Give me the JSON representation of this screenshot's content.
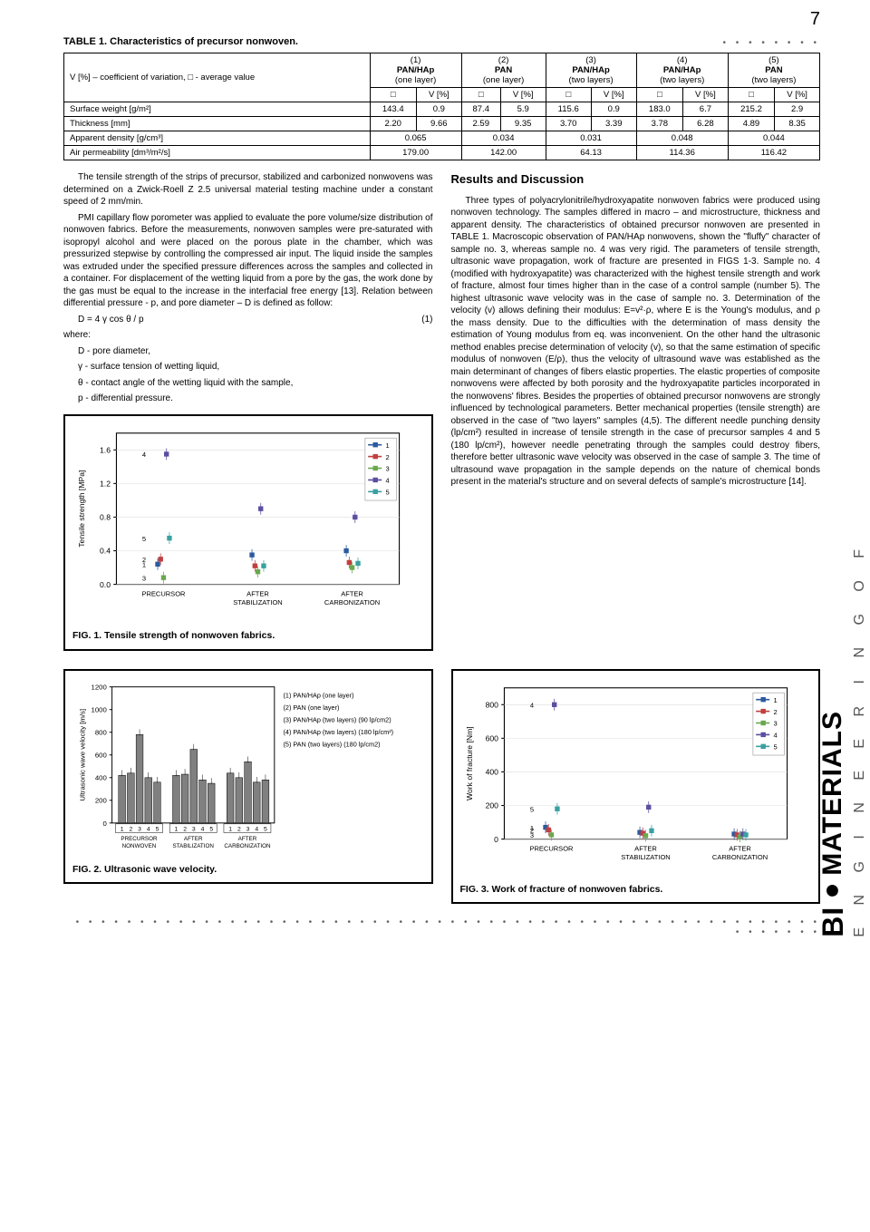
{
  "page_number": "7",
  "table": {
    "title": "TABLE 1. Characteristics of precursor nonwoven.",
    "col_groups": [
      {
        "num": "(1)",
        "mat": "PAN/HAp",
        "layers": "(one layer)"
      },
      {
        "num": "(2)",
        "mat": "PAN",
        "layers": "(one layer)"
      },
      {
        "num": "(3)",
        "mat": "PAN/HAp",
        "layers": "(two layers)"
      },
      {
        "num": "(4)",
        "mat": "PAN/HAp",
        "layers": "(two layers)"
      },
      {
        "num": "(5)",
        "mat": "PAN",
        "layers": "(two layers)"
      }
    ],
    "var_label": "V [%] – coefficient of variation, □ - average value",
    "sub_headers": [
      "□",
      "V [%]"
    ],
    "rows": [
      {
        "label": "Surface weight [g/m²]",
        "vals": [
          "143.4",
          "0.9",
          "87.4",
          "5.9",
          "115.6",
          "0.9",
          "183.0",
          "6.7",
          "215.2",
          "2.9"
        ]
      },
      {
        "label": "Thickness [mm]",
        "vals": [
          "2.20",
          "9.66",
          "2.59",
          "9.35",
          "3.70",
          "3.39",
          "3.78",
          "6.28",
          "4.89",
          "8.35"
        ]
      }
    ],
    "merged_rows": [
      {
        "label": "Apparent density [g/cm³]",
        "vals": [
          "0.065",
          "0.034",
          "0.031",
          "0.048",
          "0.044"
        ]
      },
      {
        "label": "Air permeability [dm³/m²/s]",
        "vals": [
          "179.00",
          "142.00",
          "64.13",
          "114.36",
          "116.42"
        ]
      }
    ]
  },
  "left_col": {
    "p1": "The tensile strength of the strips of precursor, stabilized and carbonized nonwovens was determined on a Zwick-Roell Z 2.5 universal material testing machine under a constant speed of 2 mm/min.",
    "p2": "PMI capillary flow porometer was applied to evaluate the pore volume/size distribution of nonwoven fabrics. Before the measurements, nonwoven samples were pre-saturated with isopropyl alcohol and were placed on the porous plate in the chamber, which was pressurized stepwise by controlling the compressed air input. The liquid inside the samples was extruded under the specified pressure differences across the samples and collected in a container. For displacement of the wetting liquid from a pore by the gas, the work done by the gas must be equal to the increase in the interfacial free energy [13]. Relation between differential pressure - p, and pore diameter – D is defined as follow:",
    "eq": "D = 4 γ cos θ / p",
    "eqnum": "(1)",
    "where": "where:",
    "def1": "D - pore diameter,",
    "def2": "γ - surface tension of wetting liquid,",
    "def3": "θ - contact angle of the wetting liquid with the sample,",
    "def4": "p - differential pressure."
  },
  "right_col": {
    "head": "Results and Discussion",
    "body": "Three types of polyacrylonitrile/hydroxyapatite nonwoven fabrics were produced using nonwoven technology. The samples differed in macro – and microstructure, thickness and apparent density. The characteristics of obtained precursor nonwoven are presented in TABLE 1. Macroscopic observation of PAN/HAp nonwovens, shown the \"fluffy\" character of sample no. 3, whereas sample no. 4 was very rigid. The parameters of tensile strength, ultrasonic wave propagation, work of fracture are presented in FIGS 1-3. Sample no. 4 (modified with hydroxyapatite) was characterized with the highest tensile strength and work of fracture, almost four times higher than in the case of a control sample (number 5). The highest ultrasonic wave velocity was in the case of sample no. 3. Determination of the velocity (v) allows defining their modulus: E=v²·ρ, where E is the Young's modulus, and ρ the mass density. Due to the difficulties with the determination of mass density the estimation of Young modulus from eq. was inconvenient. On the other hand the ultrasonic method enables precise determination of velocity (v), so that the same estimation of specific modulus of nonwoven (E/ρ), thus the velocity of ultrasound wave was established as the main determinant of changes of fibers elastic properties. The elastic properties of composite nonwovens were affected by both porosity and the hydroxyapatite particles incorporated in the nonwovens' fibres. Besides the properties of obtained precursor nonwovens are strongly influenced by technological parameters. Better mechanical properties (tensile strength) are observed in the case of \"two layers\" samples (4,5). The different needle punching density (lp/cm²) resulted in increase of tensile strength in the case of precursor samples 4 and 5 (180 lp/cm²), however needle penetrating through the samples could destroy fibers, therefore better ultrasonic wave velocity was observed in the case of sample 3. The time of ultrasound wave propagation in the sample depends on the nature of chemical bonds present in the material's structure and on several defects of sample's microstructure [14]."
  },
  "fig1": {
    "caption": "FIG. 1. Tensile strength of nonwoven fabrics.",
    "ylabel": "Tensile strength [MPa]",
    "yticks": [
      0.0,
      0.4,
      0.8,
      1.2,
      1.6
    ],
    "categories": [
      "PRECURSOR",
      "AFTER STABILIZATION",
      "AFTER CARBONIZATION"
    ],
    "series": [
      {
        "name": "1",
        "color": "#2c5aa0",
        "marker": "diamond",
        "vals": [
          0.24,
          0.35,
          0.4
        ]
      },
      {
        "name": "2",
        "color": "#c04040",
        "marker": "square",
        "vals": [
          0.3,
          0.22,
          0.26
        ]
      },
      {
        "name": "3",
        "color": "#6aa84f",
        "marker": "triangle",
        "vals": [
          0.08,
          0.15,
          0.2
        ]
      },
      {
        "name": "4",
        "color": "#5a4fa0",
        "marker": "square",
        "vals": [
          1.55,
          0.9,
          0.8
        ]
      },
      {
        "name": "5",
        "color": "#3aa0a0",
        "marker": "square",
        "vals": [
          0.55,
          0.22,
          0.25
        ]
      }
    ]
  },
  "fig2": {
    "caption": "FIG. 2. Ultrasonic wave velocity.",
    "ylabel": "Ultrasonic wave velocity [m/s]",
    "yticks": [
      0,
      200,
      400,
      600,
      800,
      1000,
      1200
    ],
    "categories": [
      "PRECURSOR NONWOVEN",
      "AFTER STABILIZATION",
      "AFTER CARBONIZATION"
    ],
    "legend": [
      "(1)  PAN/HAp (one layer)",
      "(2)  PAN (one layer)",
      "(3)  PAN/HAp (two layers) (90 lp/cm2)",
      "(4)  PAN/HAp (two layers) (180 lp/cm²)",
      "(5)  PAN (two layers) (180 lp/cm2)"
    ],
    "groups": [
      [
        420,
        440,
        780,
        400,
        360
      ],
      [
        420,
        430,
        650,
        380,
        350
      ],
      [
        440,
        400,
        540,
        360,
        380
      ]
    ],
    "bar_color": "#808080"
  },
  "fig3": {
    "caption": "FIG. 3. Work of fracture of nonwoven fabrics.",
    "ylabel": "Work of fracture [Nm]",
    "yticks": [
      0,
      200,
      400,
      600,
      800
    ],
    "categories": [
      "PRECURSOR",
      "AFTER STABILIZATION",
      "AFTER CARBONIZATION"
    ],
    "series": [
      {
        "name": "1",
        "color": "#2c5aa0",
        "marker": "diamond",
        "vals": [
          70,
          40,
          30
        ]
      },
      {
        "name": "2",
        "color": "#c04040",
        "marker": "square",
        "vals": [
          55,
          35,
          25
        ]
      },
      {
        "name": "3",
        "color": "#6aa84f",
        "marker": "triangle",
        "vals": [
          25,
          20,
          15
        ]
      },
      {
        "name": "4",
        "color": "#5a4fa0",
        "marker": "square",
        "vals": [
          800,
          190,
          30
        ]
      },
      {
        "name": "5",
        "color": "#3aa0a0",
        "marker": "square",
        "vals": [
          180,
          50,
          25
        ]
      }
    ]
  },
  "side_text": "E N G I N E E R I N G   O F",
  "logo_main": "MATERIALS",
  "logo_pre": "BI"
}
